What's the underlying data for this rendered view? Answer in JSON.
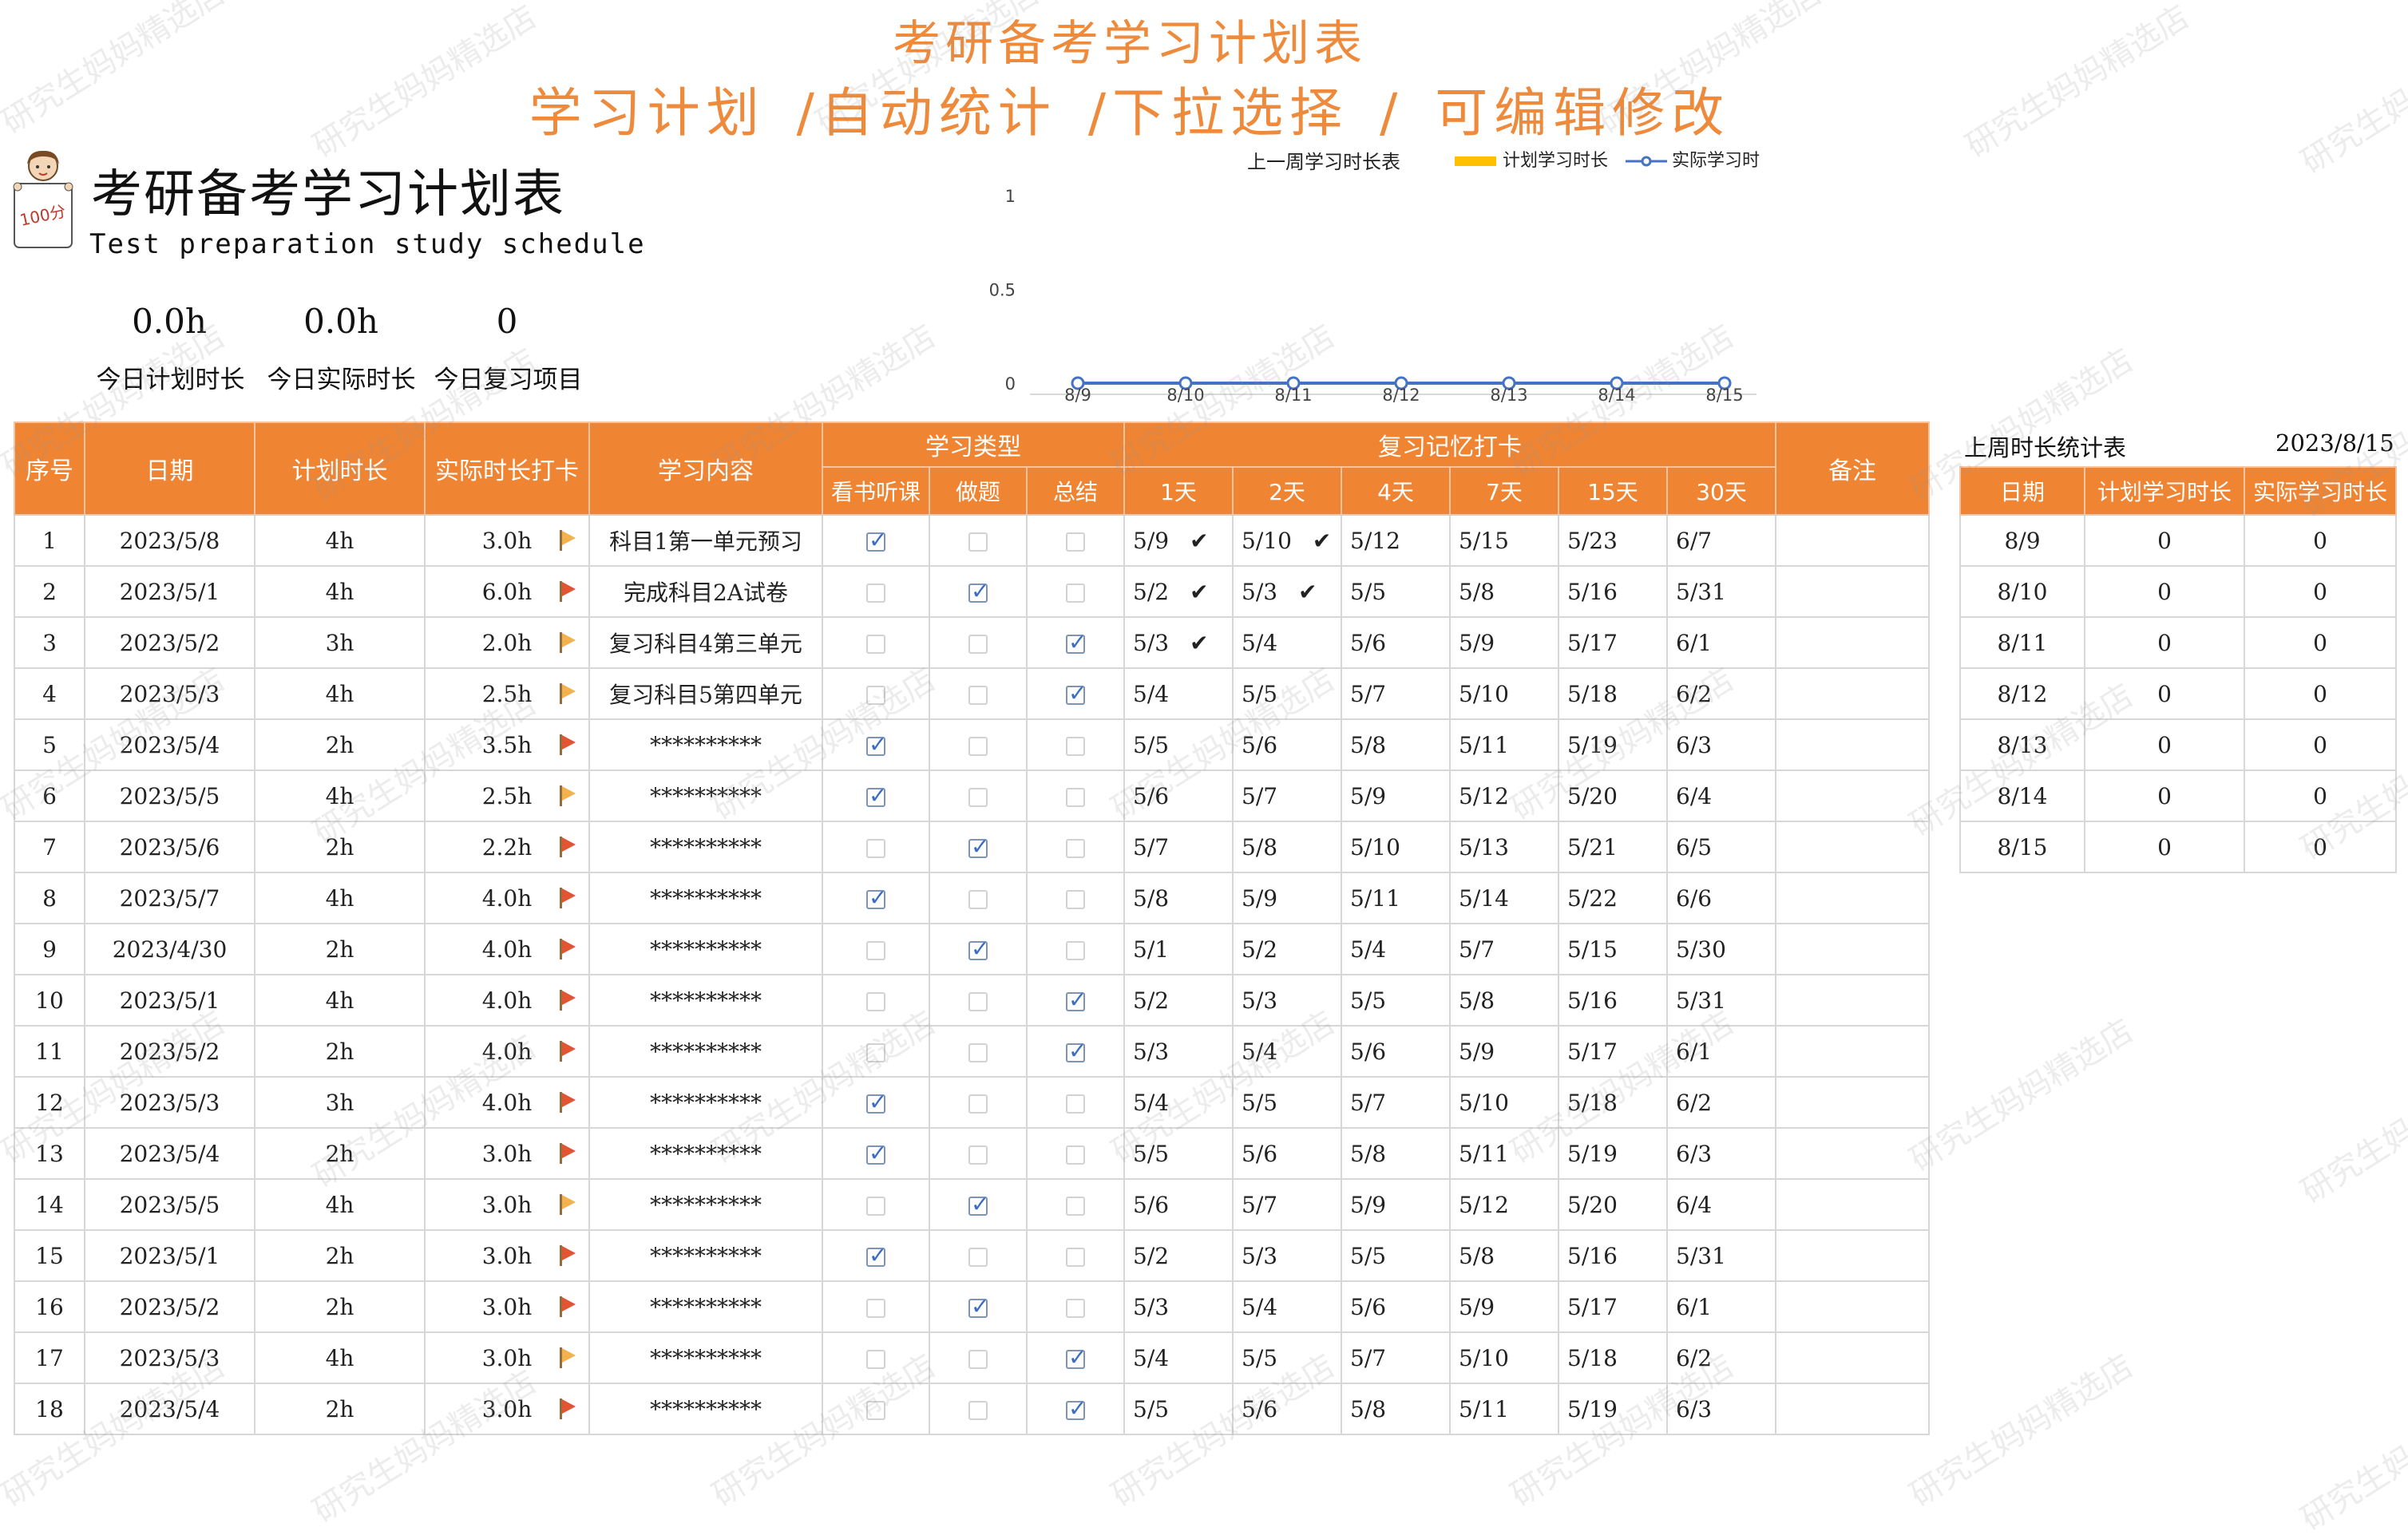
{
  "banner": {
    "line1": "考研备考学习计划表",
    "line2": "学习计划 /自动统计 /下拉选择 / 可编辑修改"
  },
  "header": {
    "title": "考研备考学习计划表",
    "subtitle": "Test preparation study schedule",
    "mascot_icon": "student-holding-100-sign-icon"
  },
  "stats": [
    {
      "value": "0.0h",
      "label": "今日计划时长"
    },
    {
      "value": "0.0h",
      "label": "今日实际时长"
    },
    {
      "value": "0",
      "label": "今日复习项目"
    }
  ],
  "colors": {
    "accent": "#ef8432",
    "planned": "#ffc000",
    "actual": "#4472c4",
    "checked": "#3a6ec2",
    "flag_red": "#e25434",
    "flag_yellow": "#f2b24e"
  },
  "chart_data": {
    "type": "line",
    "title": "上一周学习时长表",
    "categories": [
      "8/9",
      "8/10",
      "8/11",
      "8/12",
      "8/13",
      "8/14",
      "8/15"
    ],
    "series": [
      {
        "name": "计划学习时长",
        "kind": "bar",
        "values": [
          0,
          0,
          0,
          0,
          0,
          0,
          0
        ]
      },
      {
        "name": "实际学习时",
        "kind": "line",
        "values": [
          0,
          0,
          0,
          0,
          0,
          0,
          0
        ]
      }
    ],
    "y_ticks": [
      "0",
      "0.5",
      "1"
    ],
    "ylim": [
      0,
      1
    ],
    "grid": false,
    "legend": "top-right"
  },
  "table": {
    "headers": {
      "index": "序号",
      "date": "日期",
      "planned": "计划时长",
      "actual": "实际时长打卡",
      "content": "学习内容",
      "type_group": "学习类型",
      "type_cols": [
        "看书听课",
        "做题",
        "总结"
      ],
      "review_group": "复习记忆打卡",
      "review_cols": [
        "1天",
        "2天",
        "4天",
        "7天",
        "15天",
        "30天"
      ],
      "notes": "备注"
    },
    "rows": [
      {
        "idx": "1",
        "date": "2023/5/8",
        "planned": "4h",
        "actual": "3.0h",
        "flag": "y",
        "content": "科目1第一单元预习",
        "types": [
          true,
          false,
          false
        ],
        "review": [
          "5/9",
          "5/10",
          "5/12",
          "5/15",
          "5/23",
          "6/7"
        ],
        "done": [
          true,
          true,
          false,
          false,
          false,
          false
        ]
      },
      {
        "idx": "2",
        "date": "2023/5/1",
        "planned": "4h",
        "actual": "6.0h",
        "flag": "r",
        "content": "完成科目2A试卷",
        "types": [
          false,
          true,
          false
        ],
        "review": [
          "5/2",
          "5/3",
          "5/5",
          "5/8",
          "5/16",
          "5/31"
        ],
        "done": [
          true,
          true,
          false,
          false,
          false,
          false
        ]
      },
      {
        "idx": "3",
        "date": "2023/5/2",
        "planned": "3h",
        "actual": "2.0h",
        "flag": "y",
        "content": "复习科目4第三单元",
        "types": [
          false,
          false,
          true
        ],
        "review": [
          "5/3",
          "5/4",
          "5/6",
          "5/9",
          "5/17",
          "6/1"
        ],
        "done": [
          true,
          false,
          false,
          false,
          false,
          false
        ]
      },
      {
        "idx": "4",
        "date": "2023/5/3",
        "planned": "4h",
        "actual": "2.5h",
        "flag": "y",
        "content": "复习科目5第四单元",
        "types": [
          false,
          false,
          true
        ],
        "review": [
          "5/4",
          "5/5",
          "5/7",
          "5/10",
          "5/18",
          "6/2"
        ],
        "done": [
          false,
          false,
          false,
          false,
          false,
          false
        ]
      },
      {
        "idx": "5",
        "date": "2023/5/4",
        "planned": "2h",
        "actual": "3.5h",
        "flag": "r",
        "content": "**********",
        "types": [
          true,
          false,
          false
        ],
        "review": [
          "5/5",
          "5/6",
          "5/8",
          "5/11",
          "5/19",
          "6/3"
        ],
        "done": [
          false,
          false,
          false,
          false,
          false,
          false
        ]
      },
      {
        "idx": "6",
        "date": "2023/5/5",
        "planned": "4h",
        "actual": "2.5h",
        "flag": "y",
        "content": "**********",
        "types": [
          true,
          false,
          false
        ],
        "review": [
          "5/6",
          "5/7",
          "5/9",
          "5/12",
          "5/20",
          "6/4"
        ],
        "done": [
          false,
          false,
          false,
          false,
          false,
          false
        ]
      },
      {
        "idx": "7",
        "date": "2023/5/6",
        "planned": "2h",
        "actual": "2.2h",
        "flag": "r",
        "content": "**********",
        "types": [
          false,
          true,
          false
        ],
        "review": [
          "5/7",
          "5/8",
          "5/10",
          "5/13",
          "5/21",
          "6/5"
        ],
        "done": [
          false,
          false,
          false,
          false,
          false,
          false
        ]
      },
      {
        "idx": "8",
        "date": "2023/5/7",
        "planned": "4h",
        "actual": "4.0h",
        "flag": "r",
        "content": "**********",
        "types": [
          true,
          false,
          false
        ],
        "review": [
          "5/8",
          "5/9",
          "5/11",
          "5/14",
          "5/22",
          "6/6"
        ],
        "done": [
          false,
          false,
          false,
          false,
          false,
          false
        ]
      },
      {
        "idx": "9",
        "date": "2023/4/30",
        "planned": "2h",
        "actual": "4.0h",
        "flag": "r",
        "content": "**********",
        "types": [
          false,
          true,
          false
        ],
        "review": [
          "5/1",
          "5/2",
          "5/4",
          "5/7",
          "5/15",
          "5/30"
        ],
        "done": [
          false,
          false,
          false,
          false,
          false,
          false
        ]
      },
      {
        "idx": "10",
        "date": "2023/5/1",
        "planned": "4h",
        "actual": "4.0h",
        "flag": "r",
        "content": "**********",
        "types": [
          false,
          false,
          true
        ],
        "review": [
          "5/2",
          "5/3",
          "5/5",
          "5/8",
          "5/16",
          "5/31"
        ],
        "done": [
          false,
          false,
          false,
          false,
          false,
          false
        ]
      },
      {
        "idx": "11",
        "date": "2023/5/2",
        "planned": "2h",
        "actual": "4.0h",
        "flag": "r",
        "content": "**********",
        "types": [
          false,
          false,
          true
        ],
        "review": [
          "5/3",
          "5/4",
          "5/6",
          "5/9",
          "5/17",
          "6/1"
        ],
        "done": [
          false,
          false,
          false,
          false,
          false,
          false
        ]
      },
      {
        "idx": "12",
        "date": "2023/5/3",
        "planned": "3h",
        "actual": "4.0h",
        "flag": "r",
        "content": "**********",
        "types": [
          true,
          false,
          false
        ],
        "review": [
          "5/4",
          "5/5",
          "5/7",
          "5/10",
          "5/18",
          "6/2"
        ],
        "done": [
          false,
          false,
          false,
          false,
          false,
          false
        ]
      },
      {
        "idx": "13",
        "date": "2023/5/4",
        "planned": "2h",
        "actual": "3.0h",
        "flag": "r",
        "content": "**********",
        "types": [
          true,
          false,
          false
        ],
        "review": [
          "5/5",
          "5/6",
          "5/8",
          "5/11",
          "5/19",
          "6/3"
        ],
        "done": [
          false,
          false,
          false,
          false,
          false,
          false
        ]
      },
      {
        "idx": "14",
        "date": "2023/5/5",
        "planned": "4h",
        "actual": "3.0h",
        "flag": "y",
        "content": "**********",
        "types": [
          false,
          true,
          false
        ],
        "review": [
          "5/6",
          "5/7",
          "5/9",
          "5/12",
          "5/20",
          "6/4"
        ],
        "done": [
          false,
          false,
          false,
          false,
          false,
          false
        ]
      },
      {
        "idx": "15",
        "date": "2023/5/1",
        "planned": "2h",
        "actual": "3.0h",
        "flag": "r",
        "content": "**********",
        "types": [
          true,
          false,
          false
        ],
        "review": [
          "5/2",
          "5/3",
          "5/5",
          "5/8",
          "5/16",
          "5/31"
        ],
        "done": [
          false,
          false,
          false,
          false,
          false,
          false
        ]
      },
      {
        "idx": "16",
        "date": "2023/5/2",
        "planned": "2h",
        "actual": "3.0h",
        "flag": "r",
        "content": "**********",
        "types": [
          false,
          true,
          false
        ],
        "review": [
          "5/3",
          "5/4",
          "5/6",
          "5/9",
          "5/17",
          "6/1"
        ],
        "done": [
          false,
          false,
          false,
          false,
          false,
          false
        ]
      },
      {
        "idx": "17",
        "date": "2023/5/3",
        "planned": "4h",
        "actual": "3.0h",
        "flag": "y",
        "content": "**********",
        "types": [
          false,
          false,
          true
        ],
        "review": [
          "5/4",
          "5/5",
          "5/7",
          "5/10",
          "5/18",
          "6/2"
        ],
        "done": [
          false,
          false,
          false,
          false,
          false,
          false
        ]
      },
      {
        "idx": "18",
        "date": "2023/5/4",
        "planned": "2h",
        "actual": "3.0h",
        "flag": "r",
        "content": "**********",
        "types": [
          false,
          false,
          true
        ],
        "review": [
          "5/5",
          "5/6",
          "5/8",
          "5/11",
          "5/19",
          "6/3"
        ],
        "done": [
          false,
          false,
          false,
          false,
          false,
          false
        ]
      }
    ]
  },
  "weekly": {
    "title": "上周时长统计表",
    "date": "2023/8/15",
    "headers": [
      "日期",
      "计划学习时长",
      "实际学习时长"
    ],
    "rows": [
      [
        "8/9",
        "0",
        "0"
      ],
      [
        "8/10",
        "0",
        "0"
      ],
      [
        "8/11",
        "0",
        "0"
      ],
      [
        "8/12",
        "0",
        "0"
      ],
      [
        "8/13",
        "0",
        "0"
      ],
      [
        "8/14",
        "0",
        "0"
      ],
      [
        "8/15",
        "0",
        "0"
      ]
    ]
  },
  "watermark": "研究生妈妈精选店"
}
